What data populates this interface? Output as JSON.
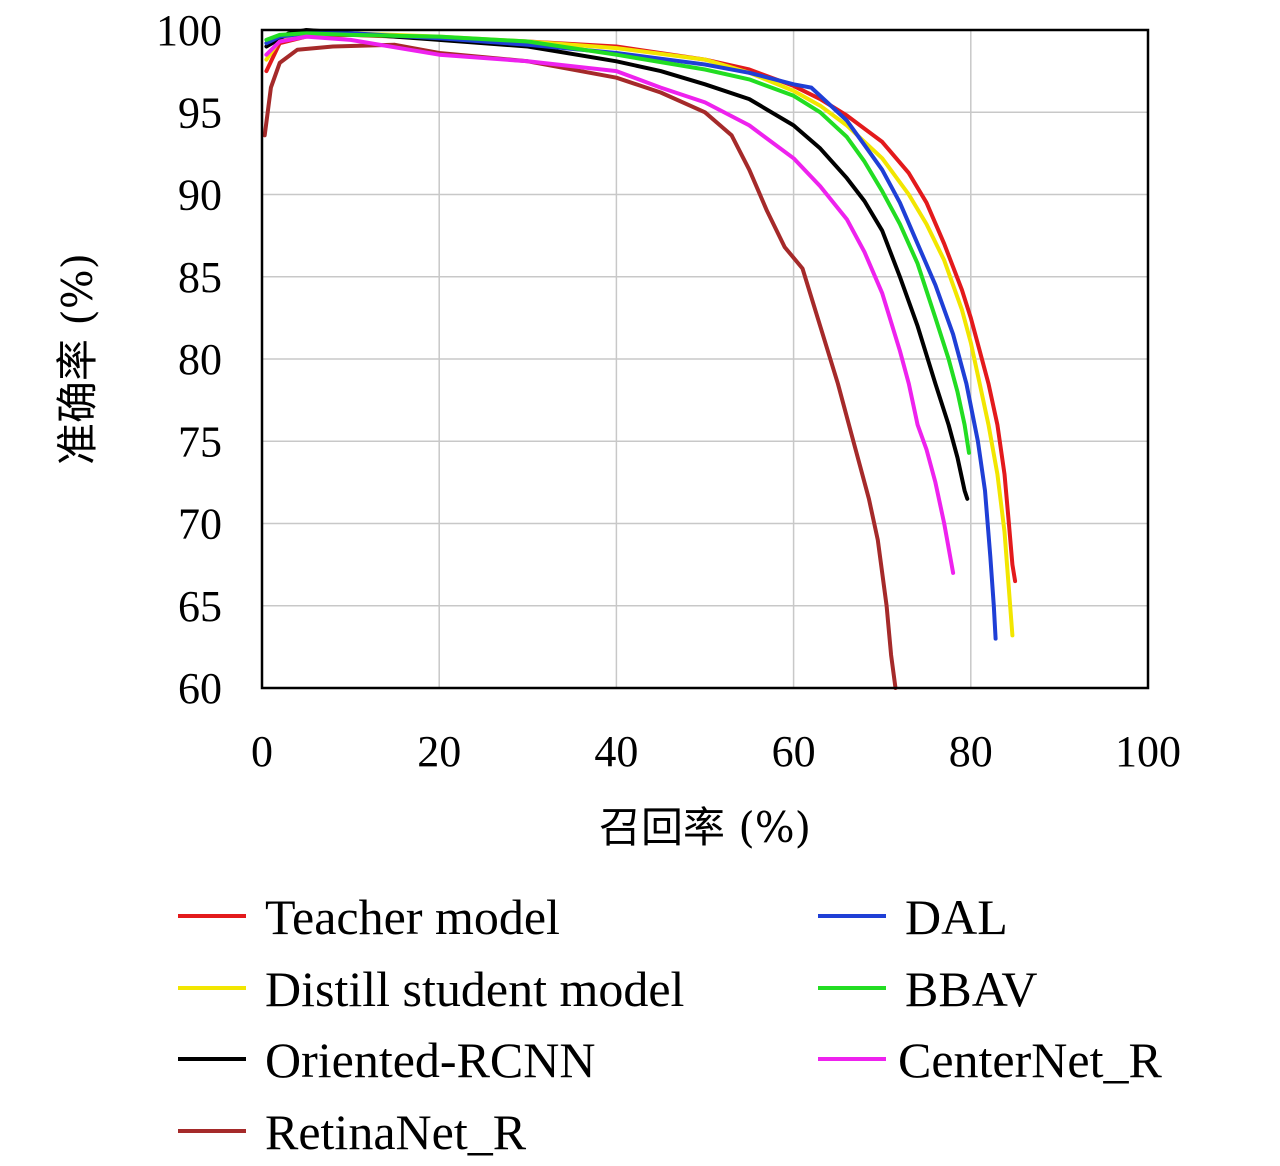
{
  "chart_data": {
    "type": "line",
    "xlabel": "召回率 (%)",
    "ylabel": "准确率 (%)",
    "xlim": [
      0,
      100
    ],
    "ylim": [
      60,
      100
    ],
    "xticks": [
      0,
      20,
      40,
      60,
      80,
      100
    ],
    "yticks": [
      60,
      65,
      70,
      75,
      80,
      85,
      90,
      95,
      100
    ],
    "grid": true,
    "legend_position": "bottom",
    "series": [
      {
        "name": "Teacher model",
        "color": "#e31a1c",
        "points": [
          [
            0.5,
            97.5
          ],
          [
            2,
            99.2
          ],
          [
            5,
            99.6
          ],
          [
            10,
            99.7
          ],
          [
            20,
            99.5
          ],
          [
            30,
            99.3
          ],
          [
            40,
            99.0
          ],
          [
            50,
            98.2
          ],
          [
            55,
            97.6
          ],
          [
            60,
            96.6
          ],
          [
            63,
            95.8
          ],
          [
            66,
            94.8
          ],
          [
            70,
            93.2
          ],
          [
            73,
            91.3
          ],
          [
            75,
            89.5
          ],
          [
            77,
            87.0
          ],
          [
            79,
            84.2
          ],
          [
            80,
            82.5
          ],
          [
            81,
            80.5
          ],
          [
            82,
            78.5
          ],
          [
            83,
            76.0
          ],
          [
            83.8,
            73.0
          ],
          [
            84.3,
            70.0
          ],
          [
            84.7,
            67.5
          ],
          [
            85,
            66.5
          ]
        ]
      },
      {
        "name": "Distill student model",
        "color": "#f2e600",
        "points": [
          [
            0.5,
            98.2
          ],
          [
            2,
            99.4
          ],
          [
            5,
            99.7
          ],
          [
            10,
            99.8
          ],
          [
            20,
            99.6
          ],
          [
            30,
            99.3
          ],
          [
            40,
            98.9
          ],
          [
            50,
            98.2
          ],
          [
            55,
            97.4
          ],
          [
            60,
            96.3
          ],
          [
            63,
            95.4
          ],
          [
            66,
            94.2
          ],
          [
            70,
            92.2
          ],
          [
            73,
            90.0
          ],
          [
            75,
            88.2
          ],
          [
            77,
            86.0
          ],
          [
            79,
            83.0
          ],
          [
            80,
            81.0
          ],
          [
            81,
            78.5
          ],
          [
            82,
            76.0
          ],
          [
            83,
            73.0
          ],
          [
            83.8,
            69.5
          ],
          [
            84.3,
            66.0
          ],
          [
            84.7,
            63.2
          ]
        ]
      },
      {
        "name": "Oriented-RCNN",
        "color": "#000000",
        "points": [
          [
            0.5,
            99.0
          ],
          [
            3,
            99.8
          ],
          [
            5,
            100.0
          ],
          [
            10,
            99.8
          ],
          [
            20,
            99.4
          ],
          [
            30,
            99.0
          ],
          [
            40,
            98.1
          ],
          [
            45,
            97.5
          ],
          [
            50,
            96.7
          ],
          [
            55,
            95.8
          ],
          [
            60,
            94.2
          ],
          [
            63,
            92.8
          ],
          [
            66,
            91.0
          ],
          [
            68,
            89.6
          ],
          [
            70,
            87.8
          ],
          [
            72,
            85.0
          ],
          [
            74,
            82.0
          ],
          [
            76,
            78.5
          ],
          [
            77.5,
            76.0
          ],
          [
            78.5,
            74.0
          ],
          [
            79.3,
            72.0
          ],
          [
            79.6,
            71.5
          ]
        ]
      },
      {
        "name": "RetinaNet_R",
        "color": "#a52a2a",
        "points": [
          [
            0.3,
            93.6
          ],
          [
            1,
            96.5
          ],
          [
            2,
            98.0
          ],
          [
            4,
            98.8
          ],
          [
            8,
            99.0
          ],
          [
            15,
            99.1
          ],
          [
            20,
            98.6
          ],
          [
            30,
            98.1
          ],
          [
            40,
            97.1
          ],
          [
            45,
            96.2
          ],
          [
            50,
            95.0
          ],
          [
            53,
            93.6
          ],
          [
            55,
            91.5
          ],
          [
            57,
            89.0
          ],
          [
            59,
            86.8
          ],
          [
            61,
            85.5
          ],
          [
            63,
            82.0
          ],
          [
            65,
            78.5
          ],
          [
            67,
            74.5
          ],
          [
            68.5,
            71.5
          ],
          [
            69.5,
            69.0
          ],
          [
            70.5,
            65.0
          ],
          [
            71,
            62.0
          ],
          [
            71.5,
            60.0
          ]
        ]
      },
      {
        "name": "DAL",
        "color": "#1f3fd6",
        "points": [
          [
            0.5,
            99.2
          ],
          [
            2,
            99.6
          ],
          [
            5,
            99.8
          ],
          [
            10,
            99.8
          ],
          [
            20,
            99.5
          ],
          [
            30,
            99.1
          ],
          [
            40,
            98.6
          ],
          [
            50,
            97.9
          ],
          [
            55,
            97.4
          ],
          [
            60,
            96.7
          ],
          [
            62,
            96.5
          ],
          [
            64,
            95.5
          ],
          [
            66,
            94.5
          ],
          [
            68,
            93.0
          ],
          [
            70,
            91.5
          ],
          [
            72,
            89.5
          ],
          [
            74,
            87.0
          ],
          [
            76,
            84.5
          ],
          [
            78,
            81.5
          ],
          [
            79.5,
            78.5
          ],
          [
            80.8,
            75.0
          ],
          [
            81.6,
            72.0
          ],
          [
            82.2,
            68.0
          ],
          [
            82.6,
            65.0
          ],
          [
            82.8,
            63.0
          ]
        ]
      },
      {
        "name": "BBAV",
        "color": "#22dd22",
        "points": [
          [
            0.5,
            99.4
          ],
          [
            2,
            99.7
          ],
          [
            5,
            99.8
          ],
          [
            10,
            99.7
          ],
          [
            20,
            99.6
          ],
          [
            30,
            99.3
          ],
          [
            40,
            98.5
          ],
          [
            50,
            97.6
          ],
          [
            55,
            97.0
          ],
          [
            60,
            96.0
          ],
          [
            63,
            95.0
          ],
          [
            66,
            93.5
          ],
          [
            68,
            92.0
          ],
          [
            70,
            90.2
          ],
          [
            72,
            88.2
          ],
          [
            74,
            85.8
          ],
          [
            76,
            82.5
          ],
          [
            77.5,
            80.0
          ],
          [
            78.5,
            78.0
          ],
          [
            79.3,
            76.0
          ],
          [
            79.8,
            74.3
          ]
        ]
      },
      {
        "name": "CenterNet_R",
        "color": "#ee22ee",
        "points": [
          [
            0.5,
            98.5
          ],
          [
            2,
            99.3
          ],
          [
            5,
            99.6
          ],
          [
            10,
            99.4
          ],
          [
            20,
            98.5
          ],
          [
            30,
            98.1
          ],
          [
            40,
            97.5
          ],
          [
            45,
            96.5
          ],
          [
            50,
            95.6
          ],
          [
            55,
            94.2
          ],
          [
            60,
            92.2
          ],
          [
            63,
            90.5
          ],
          [
            66,
            88.5
          ],
          [
            68,
            86.5
          ],
          [
            70,
            84.0
          ],
          [
            72,
            80.5
          ],
          [
            73,
            78.5
          ],
          [
            74,
            76.0
          ],
          [
            75,
            74.5
          ],
          [
            76,
            72.5
          ],
          [
            77,
            70.0
          ],
          [
            78,
            67.0
          ]
        ]
      }
    ]
  }
}
